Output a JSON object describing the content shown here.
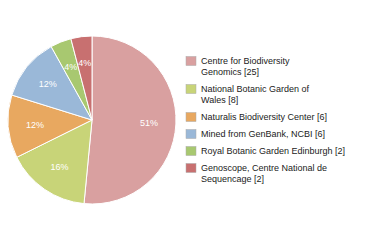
{
  "chart_data": {
    "type": "pie",
    "categories": [
      "Centre for Biodiversity\nGenomics [25]",
      "National Botanic Garden of\nWales [8]",
      "Naturalis Biodiversity Center [6]",
      "Mined from GenBank, NCBI [6]",
      "Royal Botanic Garden Edinburgh [2]",
      "Genoscope, Centre National de\nSequencage [2]"
    ],
    "values": [
      51,
      16,
      12,
      12,
      4,
      4
    ],
    "value_labels": [
      "51%",
      "16%",
      "12%",
      "12%",
      "4%",
      "4%"
    ],
    "data_labels": true,
    "colors": [
      "#d9a0a0",
      "#c8d478",
      "#e8a860",
      "#9ab8d8",
      "#a8c870",
      "#c87070"
    ],
    "legend": "right"
  }
}
